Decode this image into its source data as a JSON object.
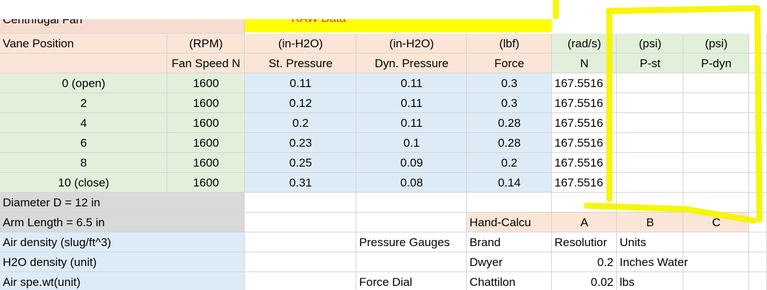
{
  "title_row": {
    "title": "Centrifugal Fan",
    "raw_data": "RAW Data"
  },
  "units_row": [
    "Vane Position",
    "(RPM)",
    "(in-H2O)",
    "(in-H2O)",
    "(lbf)",
    "(rad/s)",
    "(psi)",
    "(psi)"
  ],
  "header_row": [
    "Fan Speed N",
    "St. Pressure",
    "Dyn. Pressure",
    "Force",
    "N",
    "P-st",
    "P-dyn"
  ],
  "rows": [
    [
      "0 (open)",
      1600,
      0.11,
      0.11,
      0.3,
      167.5516
    ],
    [
      "2",
      1600,
      0.12,
      0.11,
      0.3,
      167.5516
    ],
    [
      "4",
      1600,
      0.2,
      0.11,
      0.28,
      167.5516
    ],
    [
      "6",
      1600,
      0.23,
      0.1,
      0.28,
      167.5516
    ],
    [
      "8",
      1600,
      0.25,
      0.09,
      0.2,
      167.5516
    ],
    [
      "10 (close)",
      1600,
      0.31,
      0.08,
      0.14,
      167.5516
    ]
  ],
  "notes": {
    "diameter": "Diameter D = 12 in",
    "arm_length": "Arm Length = 6.5 in",
    "air_density": "Air density (slug/ft^3)",
    "h2o_density": "H2O density (unit)",
    "air_spe_wt": "Air spe.wt(unit)"
  },
  "hand_calc": {
    "label": "Hand-Calcu",
    "cols": [
      "A",
      "B",
      "C"
    ]
  },
  "gauges": {
    "pressure_label": "Pressure Gauges",
    "brand": "Brand",
    "resolution": "Resolutior",
    "units": "Units",
    "pressure_brand": "Dwyer",
    "pressure_resolution": 0.2,
    "pressure_units": "Inches Water",
    "force_label": "Force Dial",
    "force_brand": "Chattilon",
    "force_resolution": 0.02,
    "force_units": "lbs"
  }
}
